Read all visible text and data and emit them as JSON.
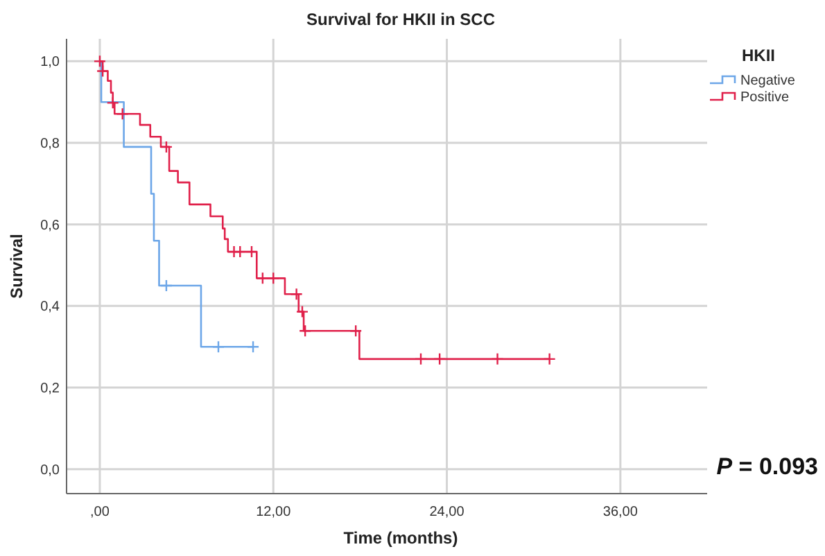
{
  "chart_data": {
    "type": "step",
    "title": "Survival for HKII in SCC",
    "xlabel": "Time (months)",
    "ylabel": "Survival",
    "legend_title": "HKII",
    "legend": "top right",
    "grid": true,
    "xlim": [
      -2.3,
      42
    ],
    "ylim": [
      -0.06,
      1.055
    ],
    "xticks": [
      {
        "value": 0,
        "label": ",00"
      },
      {
        "value": 12,
        "label": "12,00"
      },
      {
        "value": 24,
        "label": "24,00"
      },
      {
        "value": 36,
        "label": "36,00"
      }
    ],
    "yticks": [
      {
        "value": 0,
        "label": "0,0"
      },
      {
        "value": 0.2,
        "label": "0,2"
      },
      {
        "value": 0.4,
        "label": "0,4"
      },
      {
        "value": 0.6,
        "label": "0,6"
      },
      {
        "value": 0.8,
        "label": "0,8"
      },
      {
        "value": 1,
        "label": "1,0"
      }
    ],
    "series": [
      {
        "name": "Negative",
        "color": "#6ca6e8",
        "x": [
          0,
          0.1,
          1.66,
          3.55,
          3.74,
          4.1,
          7.0,
          10.6
        ],
        "values": [
          1,
          0.9,
          0.79,
          0.675,
          0.56,
          0.45,
          0.3,
          0.3
        ]
      },
      {
        "name": "Positive",
        "color": "#e0204a",
        "x": [
          0,
          0.2,
          0.55,
          0.77,
          0.9,
          1.02,
          2.78,
          3.49,
          4.22,
          4.8,
          5.4,
          6.2,
          7.65,
          8.5,
          8.64,
          8.86,
          10.85,
          12.8,
          13.75,
          14.1,
          17.95,
          31.1
        ],
        "values": [
          1,
          0.976,
          0.952,
          0.923,
          0.898,
          0.871,
          0.844,
          0.815,
          0.79,
          0.731,
          0.703,
          0.649,
          0.62,
          0.59,
          0.564,
          0.533,
          0.468,
          0.429,
          0.386,
          0.339,
          0.27,
          0.27
        ]
      },
      {
        "type": "scatter",
        "marker": "cross",
        "color": "#6ca6e8",
        "x": [
          4.6,
          8.2,
          10.6
        ],
        "values": [
          0.45,
          0.3,
          0.3
        ]
      },
      {
        "type": "scatter",
        "marker": "cross",
        "color": "#e0204a",
        "x": [
          0,
          0.2,
          0.9,
          1.57,
          4.6,
          9.28,
          9.7,
          10.5,
          11.26,
          12.0,
          13.6,
          14.0,
          14.2,
          17.7,
          22.2,
          23.5,
          27.5,
          31.1
        ],
        "values": [
          1,
          0.976,
          0.898,
          0.871,
          0.79,
          0.533,
          0.533,
          0.533,
          0.468,
          0.468,
          0.429,
          0.386,
          0.339,
          0.339,
          0.27,
          0.27,
          0.27,
          0.27
        ]
      }
    ],
    "annotations": [
      "P = 0.093"
    ]
  }
}
